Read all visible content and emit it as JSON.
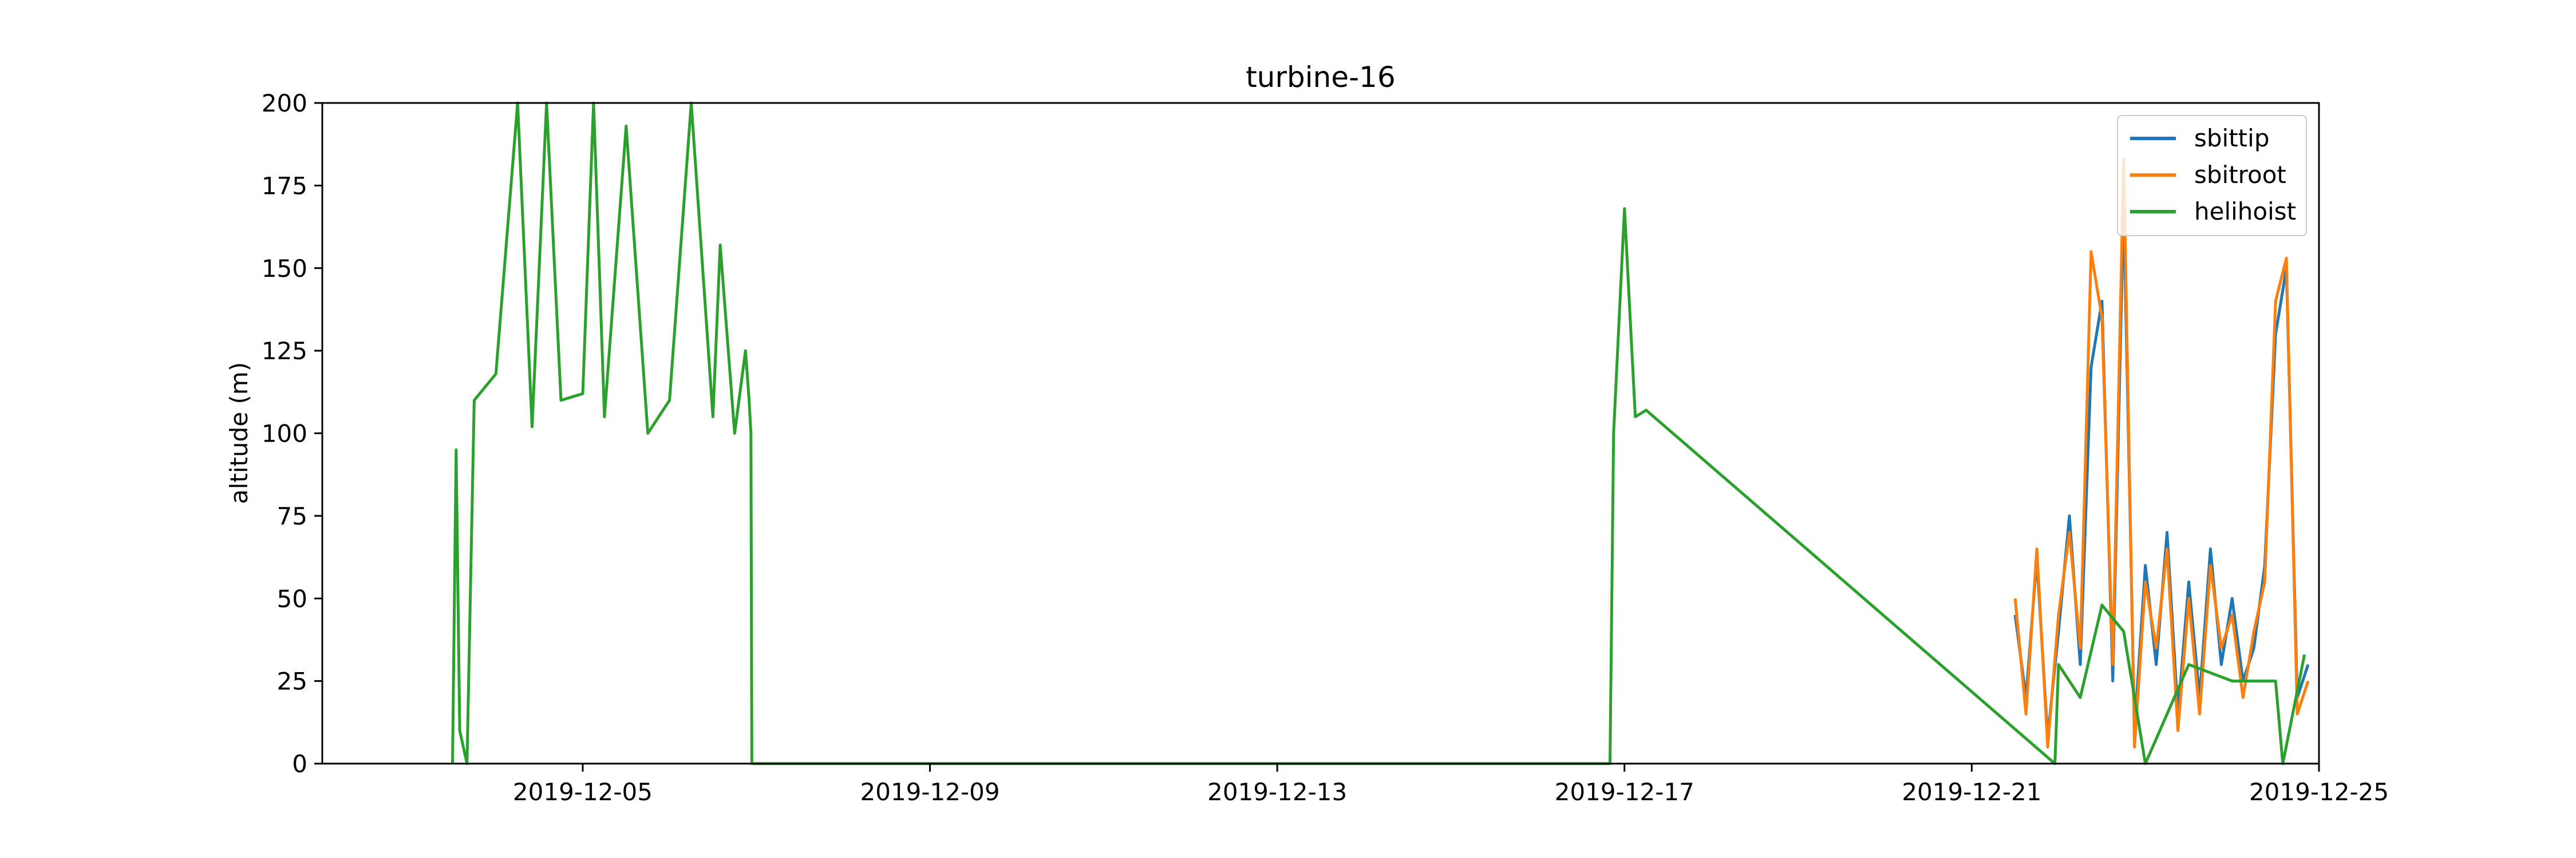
{
  "chart_data": {
    "type": "line",
    "title": "turbine-16",
    "xlabel": "",
    "ylabel": "altitude (m)",
    "x_tick_labels": [
      "2019-12-05",
      "2019-12-09",
      "2019-12-13",
      "2019-12-17",
      "2019-12-21",
      "2019-12-25"
    ],
    "xlim": [
      "2019-12-02",
      "2019-12-25"
    ],
    "ylim": [
      0,
      200
    ],
    "y_ticks": [
      0,
      25,
      50,
      75,
      100,
      125,
      150,
      175,
      200
    ],
    "grid": false,
    "legend_position": "top-right",
    "series": [
      {
        "name": "sbittip",
        "color": "#1f77b4",
        "x": [
          "2019-12-21 12:00",
          "2019-12-21 15:00",
          "2019-12-21 18:00",
          "2019-12-21 21:00",
          "2019-12-22 00:00",
          "2019-12-22 03:00",
          "2019-12-22 06:00",
          "2019-12-22 09:00",
          "2019-12-22 12:00",
          "2019-12-22 15:00",
          "2019-12-22 18:00",
          "2019-12-22 21:00",
          "2019-12-23 00:00",
          "2019-12-23 03:00",
          "2019-12-23 06:00",
          "2019-12-23 09:00",
          "2019-12-23 12:00",
          "2019-12-23 15:00",
          "2019-12-23 18:00",
          "2019-12-23 21:00",
          "2019-12-24 00:00",
          "2019-12-24 03:00",
          "2019-12-24 06:00",
          "2019-12-24 09:00",
          "2019-12-24 12:00",
          "2019-12-24 15:00",
          "2019-12-24 18:00",
          "2019-12-24 21:00"
        ],
        "y": [
          45,
          20,
          62,
          8,
          40,
          75,
          30,
          120,
          140,
          25,
          170,
          10,
          60,
          30,
          70,
          15,
          55,
          20,
          65,
          30,
          50,
          25,
          35,
          60,
          130,
          150,
          20,
          30
        ]
      },
      {
        "name": "sbitroot",
        "color": "#ff7f0e",
        "x": [
          "2019-12-21 12:00",
          "2019-12-21 15:00",
          "2019-12-21 18:00",
          "2019-12-21 21:00",
          "2019-12-22 00:00",
          "2019-12-22 03:00",
          "2019-12-22 06:00",
          "2019-12-22 09:00",
          "2019-12-22 12:00",
          "2019-12-22 15:00",
          "2019-12-22 18:00",
          "2019-12-22 21:00",
          "2019-12-23 00:00",
          "2019-12-23 03:00",
          "2019-12-23 06:00",
          "2019-12-23 09:00",
          "2019-12-23 12:00",
          "2019-12-23 15:00",
          "2019-12-23 18:00",
          "2019-12-23 21:00",
          "2019-12-24 00:00",
          "2019-12-24 03:00",
          "2019-12-24 06:00",
          "2019-12-24 09:00",
          "2019-12-24 12:00",
          "2019-12-24 15:00",
          "2019-12-24 18:00",
          "2019-12-24 21:00"
        ],
        "y": [
          50,
          15,
          65,
          5,
          45,
          70,
          35,
          155,
          135,
          30,
          183,
          5,
          55,
          35,
          65,
          10,
          50,
          15,
          60,
          35,
          45,
          20,
          40,
          55,
          140,
          153,
          15,
          25
        ]
      },
      {
        "name": "helihoist",
        "color": "#2ca02c",
        "x": [
          "2019-12-03 12:00",
          "2019-12-03 13:00",
          "2019-12-03 14:00",
          "2019-12-03 16:00",
          "2019-12-03 18:00",
          "2019-12-04 00:00",
          "2019-12-04 06:00",
          "2019-12-04 10:00",
          "2019-12-04 14:00",
          "2019-12-04 18:00",
          "2019-12-05 00:00",
          "2019-12-05 03:00",
          "2019-12-05 06:00",
          "2019-12-05 12:00",
          "2019-12-05 18:00",
          "2019-12-06 00:00",
          "2019-12-06 06:00",
          "2019-12-06 12:00",
          "2019-12-06 14:00",
          "2019-12-06 18:00",
          "2019-12-06 21:00",
          "2019-12-06 22:00",
          "2019-12-06 22:30",
          "2019-12-06 22:45",
          "2019-12-16 20:00",
          "2019-12-16 21:00",
          "2019-12-17 00:00",
          "2019-12-17 03:00",
          "2019-12-17 06:00",
          "2019-12-21 23:00",
          "2019-12-22 00:00",
          "2019-12-22 06:00",
          "2019-12-22 12:00",
          "2019-12-22 18:00",
          "2019-12-23 00:00",
          "2019-12-23 12:00",
          "2019-12-24 00:00",
          "2019-12-24 12:00",
          "2019-12-24 14:00",
          "2019-12-24 20:00"
        ],
        "y": [
          0,
          95,
          10,
          0,
          110,
          118,
          200,
          102,
          200,
          110,
          112,
          200,
          105,
          193,
          100,
          110,
          200,
          105,
          157,
          100,
          125,
          110,
          100,
          0,
          0,
          100,
          168,
          105,
          107,
          0,
          30,
          20,
          48,
          40,
          0,
          30,
          25,
          25,
          0,
          33
        ]
      }
    ]
  }
}
